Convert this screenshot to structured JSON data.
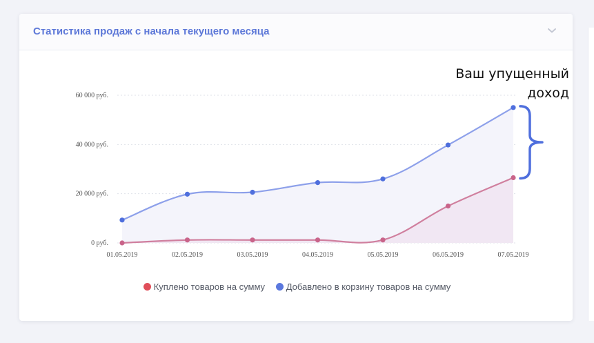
{
  "card": {
    "title": "Статистика продаж с начала текущего месяца"
  },
  "annotation": {
    "line1": "Ваш упущенный",
    "line2": "доход"
  },
  "chart_data": {
    "type": "area",
    "categories": [
      "01.05.2019",
      "02.05.2019",
      "03.05.2019",
      "04.05.2019",
      "05.05.2019",
      "06.05.2019",
      "07.05.2019"
    ],
    "y_ticks": [
      0,
      20000,
      40000,
      60000
    ],
    "y_tick_labels": [
      "0 руб.",
      "20 000 руб.",
      "40 000 руб.",
      "60 000 руб."
    ],
    "ylim": [
      0,
      60000
    ],
    "grid": true,
    "legend_position": "bottom",
    "series": [
      {
        "name": "Куплено товаров на сумму",
        "color": "#e04f5a",
        "line_color": "#d07f9e",
        "fill_color": "#f1e7f3",
        "values": [
          0,
          1200,
          1200,
          1200,
          1200,
          15000,
          26500
        ]
      },
      {
        "name": "Добавлено в корзину товаров на сумму",
        "color": "#5b78de",
        "line_color": "#8da0ea",
        "fill_color": "#f4f4fb",
        "values": [
          9300,
          19800,
          20600,
          24500,
          26000,
          39800,
          55000
        ]
      }
    ]
  }
}
